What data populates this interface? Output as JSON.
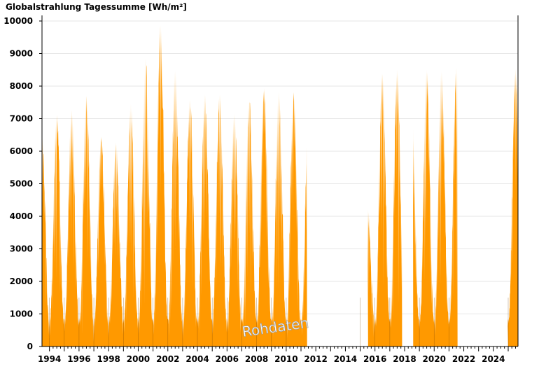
{
  "chart_data": {
    "type": "bar",
    "title": "Globalstrahlung Tagessumme [Wh/m²]",
    "xlabel": "",
    "ylabel": "",
    "ylim": [
      0,
      10000
    ],
    "y_ticks": [
      0,
      1000,
      2000,
      3000,
      4000,
      5000,
      6000,
      7000,
      8000,
      9000,
      10000
    ],
    "x_range": [
      "1993-07-01",
      "2025-08-31"
    ],
    "x_tick_labels": [
      "1994",
      "1996",
      "1998",
      "2000",
      "2002",
      "2004",
      "2006",
      "2008",
      "2010",
      "2012",
      "2014",
      "2016",
      "2018",
      "2020",
      "2022",
      "2024"
    ],
    "watermark": "Rohdaten",
    "bar_color": "#ff9900",
    "grid": true,
    "series": [
      {
        "values_note": "daily totals, shown as envelope of yearly seasonal peaks",
        "segments": [
          {
            "start": "1993-07-01",
            "end": "2011-05-31"
          },
          {
            "start": "2015-07-15",
            "end": "2017-10-31"
          },
          {
            "start": "2018-08-01",
            "end": "2021-07-31"
          },
          {
            "start": "2025-01-01",
            "end": "2025-08-31"
          }
        ],
        "yearly_peaks": [
          {
            "year": 1993,
            "max": 6450
          },
          {
            "year": 1994,
            "max": 7150
          },
          {
            "year": 1995,
            "max": 7280
          },
          {
            "year": 1996,
            "max": 7720
          },
          {
            "year": 1997,
            "max": 6450
          },
          {
            "year": 1998,
            "max": 6280
          },
          {
            "year": 1999,
            "max": 7480
          },
          {
            "year": 2000,
            "max": 8870
          },
          {
            "year": 2001,
            "max": 9900
          },
          {
            "year": 2002,
            "max": 8500
          },
          {
            "year": 2003,
            "max": 7650
          },
          {
            "year": 2004,
            "max": 7760
          },
          {
            "year": 2005,
            "max": 7770
          },
          {
            "year": 2006,
            "max": 7200
          },
          {
            "year": 2007,
            "max": 7600
          },
          {
            "year": 2008,
            "max": 7930
          },
          {
            "year": 2009,
            "max": 7860
          },
          {
            "year": 2010,
            "max": 7830
          },
          {
            "year": 2015,
            "max": 4270
          },
          {
            "year": 2016,
            "max": 8420
          },
          {
            "year": 2017,
            "max": 8530
          },
          {
            "year": 2019,
            "max": 8500
          },
          {
            "year": 2020,
            "max": 8480
          },
          {
            "year": 2021,
            "max": 8600
          },
          {
            "year": 2025,
            "max": 8550
          }
        ]
      }
    ]
  }
}
